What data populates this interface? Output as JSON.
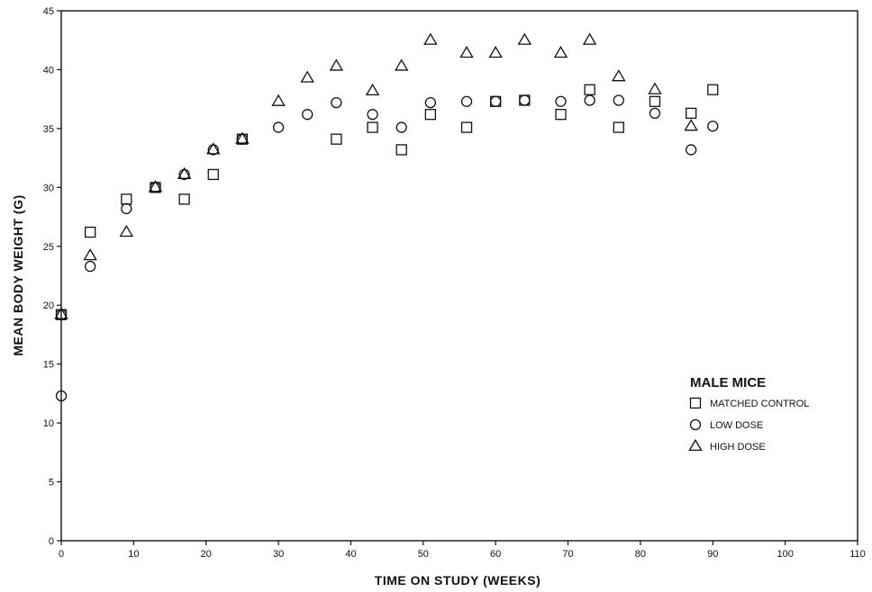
{
  "chart_data": {
    "type": "scatter",
    "title": "",
    "xlabel": "TIME ON STUDY (WEEKS)",
    "ylabel": "MEAN BODY WEIGHT (G)",
    "xlim": [
      0,
      110
    ],
    "ylim": [
      0,
      45
    ],
    "xticks": [
      0,
      10,
      20,
      30,
      40,
      50,
      60,
      70,
      80,
      90,
      100,
      110
    ],
    "yticks": [
      0,
      5,
      10,
      15,
      20,
      25,
      30,
      35,
      40,
      45
    ],
    "grid": false,
    "legend": {
      "title": "MALE MICE",
      "position": "right"
    },
    "series": [
      {
        "name": "MATCHED CONTROL",
        "marker": "square",
        "x": [
          0,
          4,
          9,
          13,
          17,
          21,
          25,
          38,
          43,
          47,
          51,
          56,
          60,
          64,
          69,
          73,
          77,
          82,
          87,
          90
        ],
        "y": [
          19.2,
          26.2,
          29.0,
          30.0,
          29.0,
          31.1,
          34.1,
          34.1,
          35.1,
          33.2,
          36.2,
          35.1,
          37.3,
          37.4,
          36.2,
          38.3,
          35.1,
          37.3,
          36.3,
          38.3
        ]
      },
      {
        "name": "LOW DOSE",
        "marker": "circle",
        "x": [
          0,
          0,
          4,
          9,
          13,
          17,
          21,
          25,
          30,
          34,
          38,
          43,
          47,
          51,
          56,
          60,
          64,
          69,
          73,
          77,
          82,
          87,
          90
        ],
        "y": [
          12.3,
          19.2,
          23.3,
          28.2,
          30.0,
          31.1,
          33.2,
          34.1,
          35.1,
          36.2,
          37.2,
          36.2,
          35.1,
          37.2,
          37.3,
          37.3,
          37.4,
          37.3,
          37.4,
          37.4,
          36.3,
          33.2,
          35.2
        ]
      },
      {
        "name": "HIGH DOSE",
        "marker": "triangle",
        "x": [
          0,
          4,
          9,
          13,
          17,
          21,
          25,
          30,
          34,
          38,
          43,
          47,
          51,
          56,
          60,
          64,
          69,
          73,
          77,
          82,
          87
        ],
        "y": [
          19.2,
          24.2,
          26.2,
          30.0,
          31.1,
          33.2,
          34.1,
          37.3,
          39.3,
          40.3,
          38.2,
          40.3,
          42.5,
          41.4,
          41.4,
          42.5,
          41.4,
          42.5,
          39.4,
          38.3,
          35.2
        ]
      }
    ]
  }
}
